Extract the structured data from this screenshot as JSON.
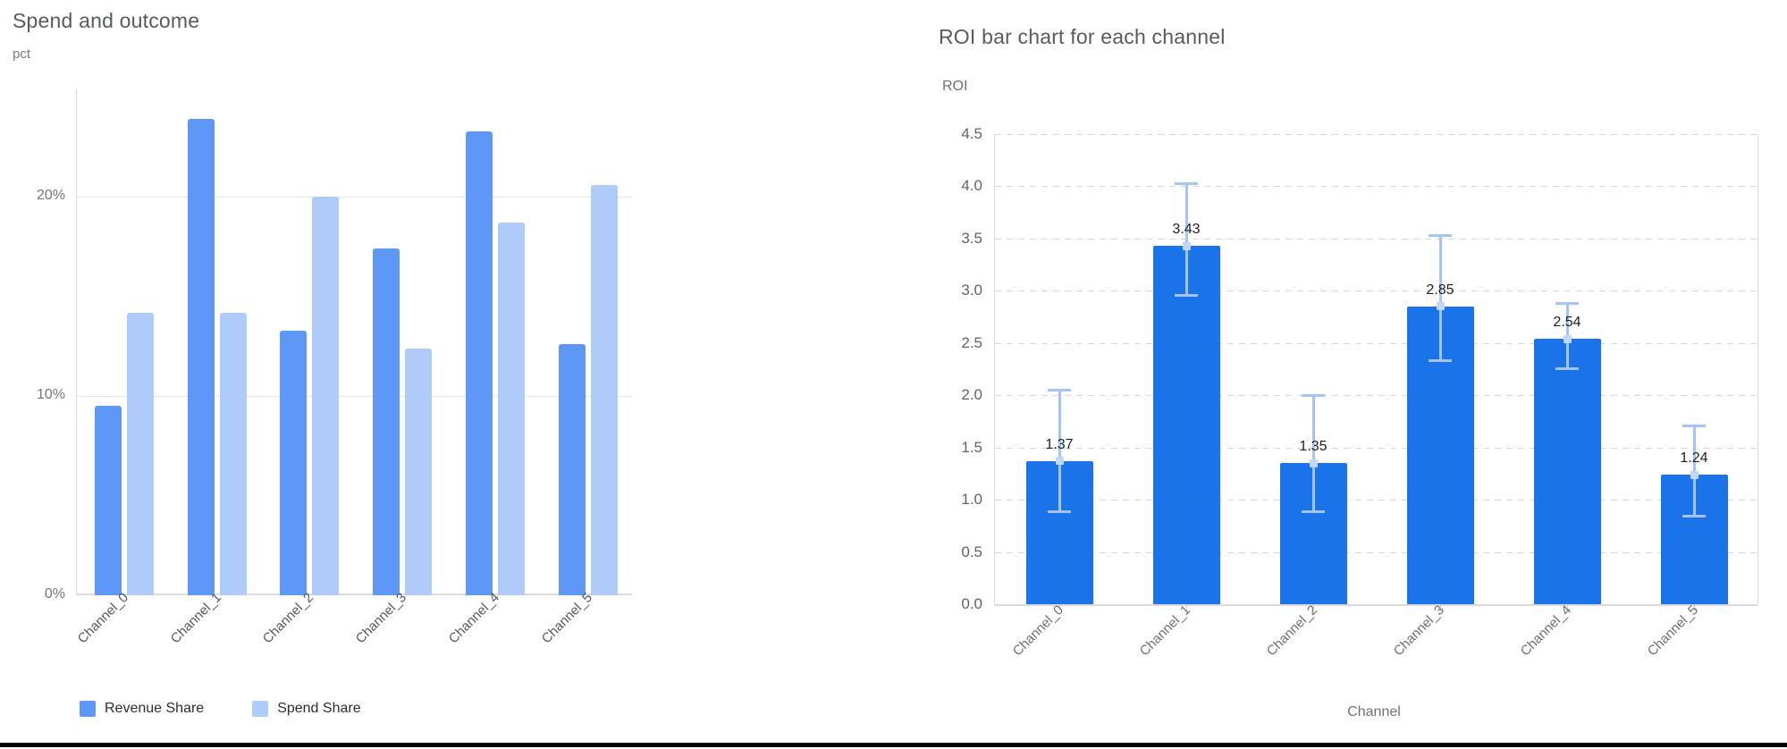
{
  "chart_data": [
    {
      "type": "bar",
      "title": "Spend and outcome",
      "xlabel": "",
      "ylabel": "pct",
      "categories": [
        "Channel_0",
        "Channel_1",
        "Channel_2",
        "Channel_3",
        "Channel_4",
        "Channel_5"
      ],
      "series": [
        {
          "name": "Revenue Share",
          "color": "#5e97f6",
          "values": [
            9.5,
            23.9,
            13.3,
            17.4,
            23.3,
            12.6
          ]
        },
        {
          "name": "Spend Share",
          "color": "#aecbfa",
          "values": [
            14.2,
            14.2,
            20.0,
            12.4,
            18.7,
            20.6
          ]
        }
      ],
      "ytick_values": [
        0,
        10,
        20
      ],
      "ytick_labels": [
        "0%",
        "10%",
        "20%"
      ],
      "ylim": [
        0,
        25.4
      ],
      "grid": "solid",
      "legend_position": "bottom"
    },
    {
      "type": "bar",
      "title": "ROI bar chart for each channel",
      "xlabel": "Channel",
      "ylabel": "ROI",
      "categories": [
        "Channel_0",
        "Channel_1",
        "Channel_2",
        "Channel_3",
        "Channel_4",
        "Channel_5"
      ],
      "values": [
        1.37,
        3.43,
        1.35,
        2.85,
        2.54,
        1.24
      ],
      "bar_labels": [
        "1.37",
        "3.43",
        "1.35",
        "2.85",
        "2.54",
        "1.24"
      ],
      "error_low": [
        0.88,
        2.95,
        0.88,
        2.33,
        2.25,
        0.84
      ],
      "error_high": [
        2.05,
        4.03,
        2.0,
        3.53,
        2.88,
        1.71
      ],
      "bar_color": "#1a73e8",
      "error_color": "#a4c4f8",
      "error_marker_color": "#c2d7fb",
      "ytick_values": [
        0,
        0.5,
        1.0,
        1.5,
        2.0,
        2.5,
        3.0,
        3.5,
        4.0,
        4.5
      ],
      "ytick_labels": [
        "0.0",
        "0.5",
        "1.0",
        "1.5",
        "2.0",
        "2.5",
        "3.0",
        "3.5",
        "4.0",
        "4.5"
      ],
      "ylim": [
        0,
        4.5
      ],
      "grid": "dashed",
      "legend_position": "none"
    }
  ]
}
